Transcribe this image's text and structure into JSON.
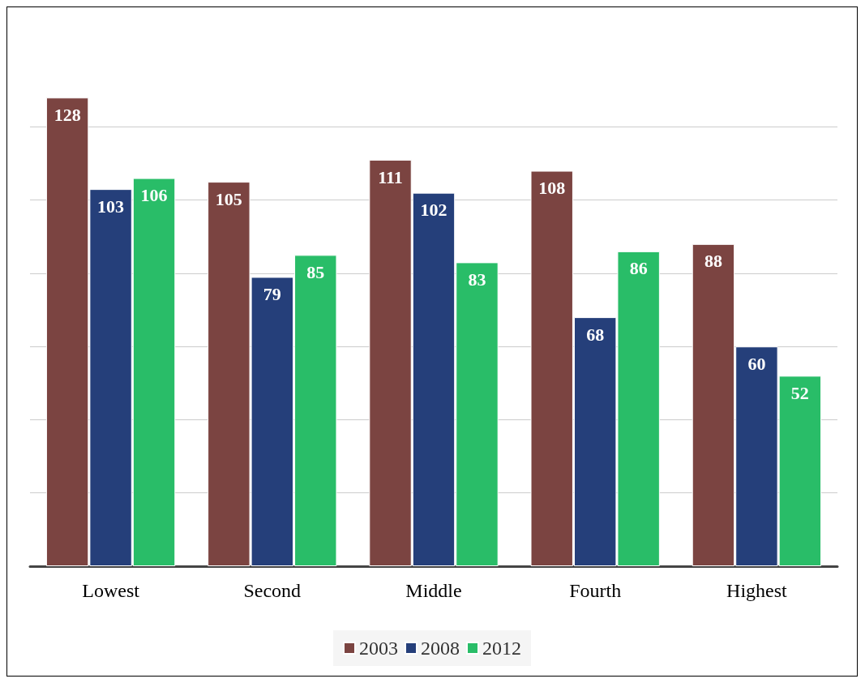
{
  "chart_data": {
    "type": "bar",
    "categories": [
      "Lowest",
      "Second",
      "Middle",
      "Fourth",
      "Highest"
    ],
    "series": [
      {
        "name": "2003",
        "color": "#7b4441",
        "values": [
          128,
          105,
          111,
          108,
          88
        ]
      },
      {
        "name": "2008",
        "color": "#253f7a",
        "values": [
          103,
          79,
          102,
          68,
          60
        ]
      },
      {
        "name": "2012",
        "color": "#29bd68",
        "values": [
          106,
          85,
          83,
          86,
          52
        ]
      }
    ],
    "yticks": [
      {
        "value": 0,
        "label": null
      },
      {
        "value": 20,
        "label": null
      },
      {
        "value": 40,
        "label": null
      },
      {
        "value": 60,
        "label": null
      },
      {
        "value": 80,
        "label": null
      },
      {
        "value": 100,
        "label": null
      },
      {
        "value": 120,
        "label": null
      }
    ],
    "grid": "y",
    "legend": "bottom",
    "tick_labels": "x",
    "data_labels": true
  }
}
